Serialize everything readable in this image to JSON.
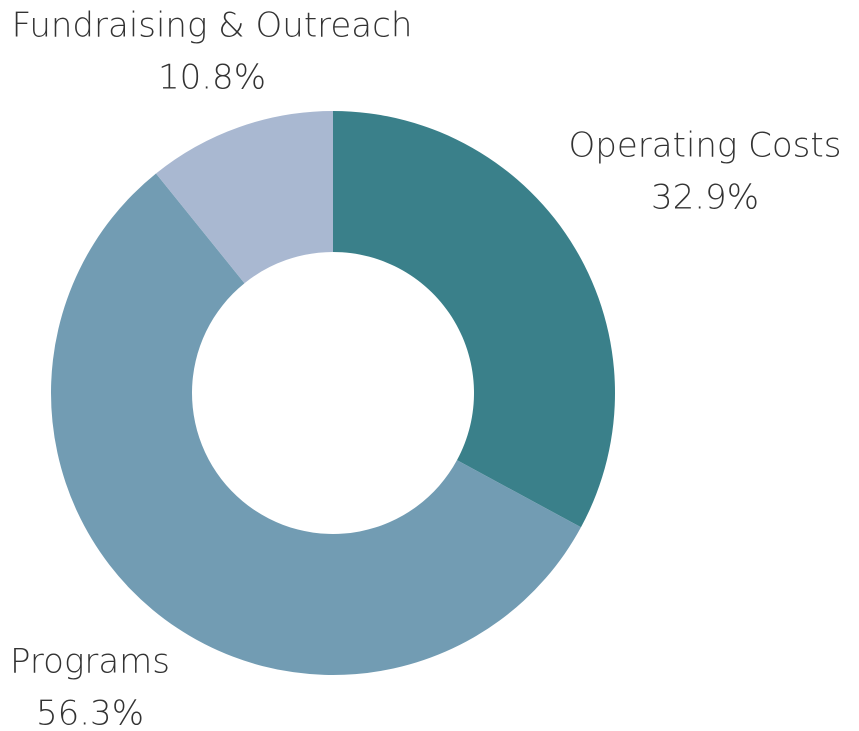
{
  "chart_data": {
    "type": "donut",
    "categories": [
      "Operating Costs",
      "Programs",
      "Fundraising & Outreach"
    ],
    "values": [
      32.9,
      56.3,
      10.8
    ],
    "value_labels": [
      "32.9%",
      "56.3%",
      "10.8%"
    ],
    "colors": [
      "#3a808a",
      "#729cb3",
      "#a9b8d1"
    ]
  }
}
